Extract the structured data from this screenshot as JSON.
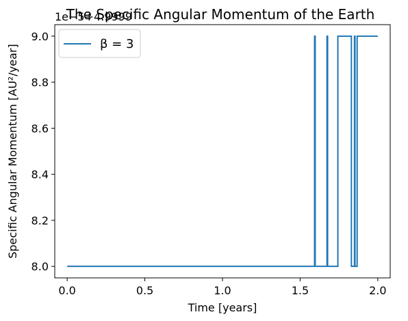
{
  "chart_data": {
    "type": "line",
    "title": "The Specific Angular Momentum of the Earth",
    "xlabel": "Time [years]",
    "ylabel": "Specific Angular Momentum [AU²/year]",
    "offset_text": "1e−5+4.9999",
    "xlim": [
      -0.08,
      2.08
    ],
    "ylim": [
      7.95,
      9.05
    ],
    "x_ticks": [
      0.0,
      0.5,
      1.0,
      1.5,
      2.0
    ],
    "x_tick_labels": [
      "0.0",
      "0.5",
      "1.0",
      "1.5",
      "2.0"
    ],
    "y_ticks": [
      8.0,
      8.2,
      8.4,
      8.6,
      8.8,
      9.0
    ],
    "y_tick_labels": [
      "8.0",
      "8.2",
      "8.4",
      "8.6",
      "8.8",
      "9.0"
    ],
    "grid": false,
    "legend_position": "top-left",
    "series": [
      {
        "name": "β = 3",
        "color": "#1f77b4",
        "x": [
          0.0,
          1.593,
          1.593,
          1.597,
          1.597,
          1.673,
          1.673,
          1.677,
          1.677,
          1.743,
          1.743,
          1.83,
          1.83,
          1.85,
          1.85,
          1.853,
          1.853,
          1.867,
          1.867,
          1.873,
          1.873,
          2.0
        ],
        "y": [
          8.0,
          8.0,
          9.0,
          9.0,
          8.0,
          8.0,
          9.0,
          9.0,
          8.0,
          8.0,
          9.0,
          9.0,
          8.0,
          8.0,
          9.0,
          9.0,
          8.0,
          8.0,
          9.0,
          9.0,
          9.0,
          9.0
        ]
      }
    ]
  }
}
